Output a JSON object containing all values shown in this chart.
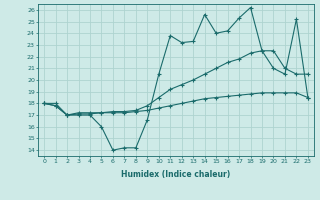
{
  "xlabel": "Humidex (Indice chaleur)",
  "background_color": "#ceeae7",
  "grid_color": "#aed4d0",
  "line_color": "#1a6b6b",
  "xlim": [
    -0.5,
    23.5
  ],
  "ylim": [
    13.5,
    26.5
  ],
  "yticks": [
    14,
    15,
    16,
    17,
    18,
    19,
    20,
    21,
    22,
    23,
    24,
    25,
    26
  ],
  "xticks": [
    0,
    1,
    2,
    3,
    4,
    5,
    6,
    7,
    8,
    9,
    10,
    11,
    12,
    13,
    14,
    15,
    16,
    17,
    18,
    19,
    20,
    21,
    22,
    23
  ],
  "series1": [
    18.0,
    17.8,
    17.0,
    17.0,
    17.0,
    16.0,
    14.0,
    14.2,
    14.2,
    16.6,
    20.5,
    23.8,
    23.2,
    23.3,
    25.6,
    24.0,
    24.2,
    25.3,
    26.2,
    22.5,
    21.0,
    20.5,
    25.2,
    18.5
  ],
  "series2": [
    18.0,
    18.0,
    17.0,
    17.2,
    17.2,
    17.2,
    17.3,
    17.3,
    17.4,
    17.8,
    18.5,
    19.2,
    19.6,
    20.0,
    20.5,
    21.0,
    21.5,
    21.8,
    22.3,
    22.5,
    22.5,
    21.0,
    20.5,
    20.5
  ],
  "series3": [
    18.0,
    17.8,
    17.0,
    17.1,
    17.1,
    17.2,
    17.2,
    17.2,
    17.3,
    17.4,
    17.6,
    17.8,
    18.0,
    18.2,
    18.4,
    18.5,
    18.6,
    18.7,
    18.8,
    18.9,
    18.9,
    18.9,
    18.9,
    18.5
  ]
}
